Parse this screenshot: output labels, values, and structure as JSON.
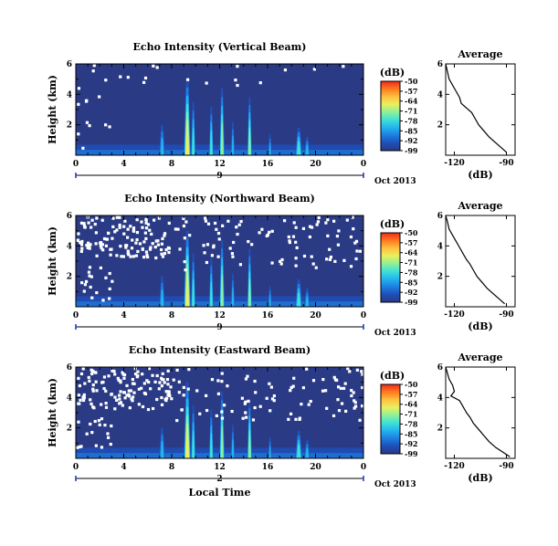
{
  "chart_data": [
    {
      "type": "heatmap",
      "title": "Echo Intensity (Vertical Beam)",
      "ylabel": "Height (km)",
      "yticks": [
        "2",
        "4",
        "6"
      ],
      "ylim": [
        0,
        6
      ],
      "xticks": [
        "0",
        "4",
        "8",
        "12",
        "16",
        "20",
        "0"
      ],
      "xlim": [
        0,
        24
      ],
      "day_label": "9",
      "date_label": "Oct 2013",
      "colorbar": {
        "unit": "(dB)",
        "ticks": [
          "-50",
          "-57",
          "-64",
          "-71",
          "-78",
          "-85",
          "-92",
          "-99"
        ],
        "range": [
          -99,
          -50
        ]
      },
      "profile": {
        "title": "Average",
        "xticks": [
          "-120",
          "-90"
        ],
        "yticks": [
          "2",
          "4",
          "6"
        ],
        "xlabel": "(dB)",
        "xlim": [
          -125,
          -85
        ],
        "ylim": [
          0,
          6
        ],
        "points": [
          [
            -90,
            0.2
          ],
          [
            -93,
            0.5
          ],
          [
            -96,
            0.8
          ],
          [
            -100,
            1.2
          ],
          [
            -103,
            1.6
          ],
          [
            -106,
            2.0
          ],
          [
            -108,
            2.4
          ],
          [
            -110,
            2.8
          ],
          [
            -113,
            3.1
          ],
          [
            -116,
            3.4
          ],
          [
            -117,
            3.8
          ],
          [
            -119,
            4.2
          ],
          [
            -121,
            4.6
          ],
          [
            -123,
            5.0
          ],
          [
            -124,
            5.5
          ],
          [
            -125,
            6.0
          ]
        ]
      }
    },
    {
      "type": "heatmap",
      "title": "Echo Intensity (Northward Beam)",
      "ylabel": "Height (km)",
      "yticks": [
        "2",
        "4",
        "6"
      ],
      "ylim": [
        0,
        6
      ],
      "xticks": [
        "0",
        "4",
        "8",
        "12",
        "16",
        "20",
        "0"
      ],
      "xlim": [
        0,
        24
      ],
      "day_label": "9",
      "date_label": "Oct 2013",
      "colorbar": {
        "unit": "(dB)",
        "ticks": [
          "-50",
          "-57",
          "-64",
          "-71",
          "-78",
          "-85",
          "-92",
          "-99"
        ],
        "range": [
          -99,
          -50
        ]
      },
      "profile": {
        "title": "Average",
        "xticks": [
          "-120",
          "-90"
        ],
        "yticks": [
          "2",
          "4",
          "6"
        ],
        "xlabel": "(dB)",
        "xlim": [
          -125,
          -85
        ],
        "ylim": [
          0,
          6
        ],
        "points": [
          [
            -91,
            0.2
          ],
          [
            -94,
            0.5
          ],
          [
            -97,
            0.8
          ],
          [
            -101,
            1.2
          ],
          [
            -104,
            1.6
          ],
          [
            -107,
            2.0
          ],
          [
            -109,
            2.4
          ],
          [
            -111,
            2.8
          ],
          [
            -113,
            3.1
          ],
          [
            -115,
            3.5
          ],
          [
            -117,
            3.9
          ],
          [
            -119,
            4.3
          ],
          [
            -121,
            4.7
          ],
          [
            -123,
            5.1
          ],
          [
            -124,
            5.6
          ],
          [
            -125,
            6.0
          ]
        ]
      }
    },
    {
      "type": "heatmap",
      "title": "Echo Intensity (Eastward Beam)",
      "ylabel": "Height (km)",
      "yticks": [
        "2",
        "4",
        "6"
      ],
      "ylim": [
        0,
        6
      ],
      "xticks": [
        "0",
        "4",
        "8",
        "12",
        "16",
        "20",
        "0"
      ],
      "xlim": [
        0,
        24
      ],
      "xlabel": "Local Time",
      "day_label": "2",
      "date_label": "Oct 2013",
      "colorbar": {
        "unit": "(dB)",
        "ticks": [
          "-50",
          "-57",
          "-64",
          "-71",
          "-78",
          "-85",
          "-92",
          "-99"
        ],
        "range": [
          -99,
          -50
        ]
      },
      "profile": {
        "title": "Average",
        "xticks": [
          "-120",
          "-90"
        ],
        "yticks": [
          "2",
          "4",
          "6"
        ],
        "xlabel": "(dB)",
        "xlim": [
          -125,
          -85
        ],
        "ylim": [
          0,
          6
        ],
        "points": [
          [
            -88,
            0.1
          ],
          [
            -92,
            0.4
          ],
          [
            -96,
            0.7
          ],
          [
            -100,
            1.1
          ],
          [
            -103,
            1.5
          ],
          [
            -106,
            1.9
          ],
          [
            -109,
            2.3
          ],
          [
            -111,
            2.7
          ],
          [
            -113,
            3.0
          ],
          [
            -115,
            3.4
          ],
          [
            -117,
            3.8
          ],
          [
            -122,
            4.1
          ],
          [
            -120,
            4.4
          ],
          [
            -121,
            4.8
          ],
          [
            -123,
            5.2
          ],
          [
            -124,
            5.6
          ],
          [
            -125,
            6.0
          ]
        ]
      }
    }
  ],
  "colors": {
    "background_field": "#2a3a85",
    "colormap": [
      "#2a3a85",
      "#1f4fb8",
      "#1e7ee0",
      "#23b4ee",
      "#3fe0d8",
      "#8ef098",
      "#e8f060",
      "#ffc040",
      "#ff7a20",
      "#f02a1a"
    ]
  }
}
